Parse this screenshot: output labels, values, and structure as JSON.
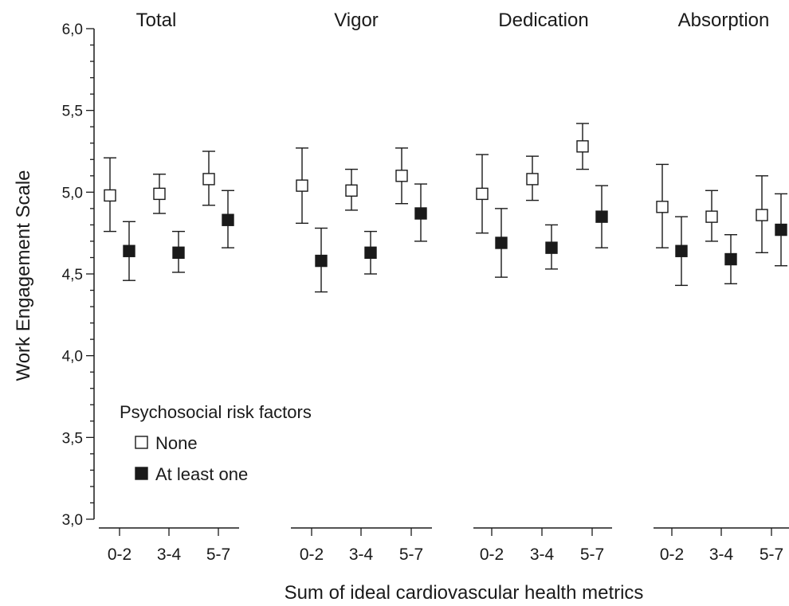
{
  "chart_data": {
    "type": "scatter",
    "ylabel": "Work Engagement Scale",
    "xlabel": "Sum of ideal cardiovascular health metrics",
    "ylim": [
      3.0,
      6.0
    ],
    "y_ticks": [
      "3,0",
      "3,5",
      "4,0",
      "4,5",
      "5,0",
      "5,5",
      "6,0"
    ],
    "y_tick_values": [
      3.0,
      3.5,
      4.0,
      4.5,
      5.0,
      5.5,
      6.0
    ],
    "categories": [
      "0-2",
      "3-4",
      "5-7"
    ],
    "legend": {
      "title": "Psychosocial risk factors",
      "entries": [
        "None",
        "At least one"
      ],
      "placement": "lower-left"
    },
    "grid": false,
    "panels": [
      {
        "title": "Total",
        "series": [
          {
            "name": "None",
            "values": [
              4.98,
              4.99,
              5.08
            ],
            "lower": [
              4.76,
              4.87,
              4.92
            ],
            "upper": [
              5.21,
              5.11,
              5.25
            ]
          },
          {
            "name": "At least one",
            "values": [
              4.64,
              4.63,
              4.83
            ],
            "lower": [
              4.46,
              4.51,
              4.66
            ],
            "upper": [
              4.82,
              4.76,
              5.01
            ]
          }
        ]
      },
      {
        "title": "Vigor",
        "series": [
          {
            "name": "None",
            "values": [
              5.04,
              5.01,
              5.1
            ],
            "lower": [
              4.81,
              4.89,
              4.93
            ],
            "upper": [
              5.27,
              5.14,
              5.27
            ]
          },
          {
            "name": "At least one",
            "values": [
              4.58,
              4.63,
              4.87
            ],
            "lower": [
              4.39,
              4.5,
              4.7
            ],
            "upper": [
              4.78,
              4.76,
              5.05
            ]
          }
        ]
      },
      {
        "title": "Dedication",
        "series": [
          {
            "name": "None",
            "values": [
              4.99,
              5.08,
              5.28
            ],
            "lower": [
              4.75,
              4.95,
              5.14
            ],
            "upper": [
              5.23,
              5.22,
              5.42
            ]
          },
          {
            "name": "At least one",
            "values": [
              4.69,
              4.66,
              4.85
            ],
            "lower": [
              4.48,
              4.53,
              4.66
            ],
            "upper": [
              4.9,
              4.8,
              5.04
            ]
          }
        ]
      },
      {
        "title": "Absorption",
        "series": [
          {
            "name": "None",
            "values": [
              4.91,
              4.85,
              4.86
            ],
            "lower": [
              4.66,
              4.7,
              4.63
            ],
            "upper": [
              5.17,
              5.01,
              5.1
            ]
          },
          {
            "name": "At least one",
            "values": [
              4.64,
              4.59,
              4.77
            ],
            "lower": [
              4.43,
              4.44,
              4.55
            ],
            "upper": [
              4.85,
              4.74,
              4.99
            ]
          }
        ]
      }
    ],
    "colors": {
      "none_fill": "#ffffff",
      "atleastone_fill": "#1a1a1a",
      "stroke": "#1a1a1a"
    }
  }
}
